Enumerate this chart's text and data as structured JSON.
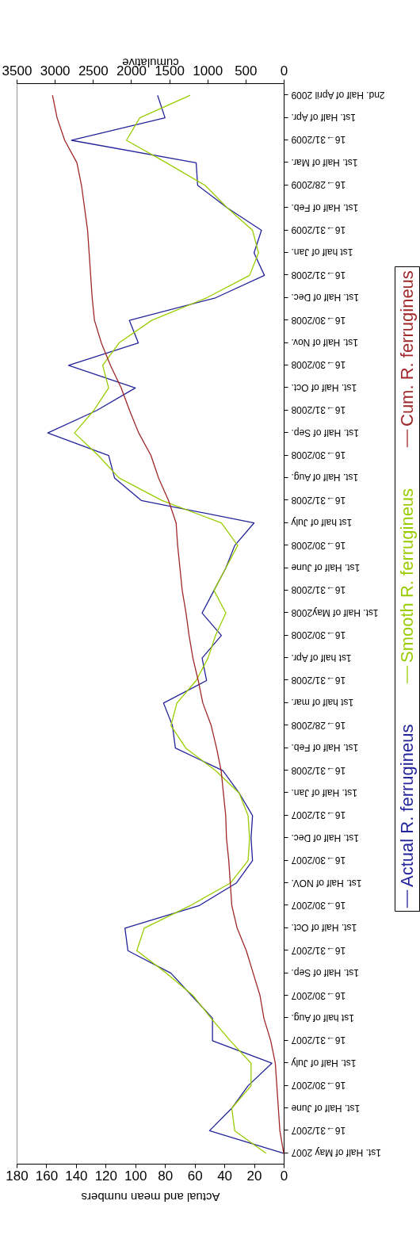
{
  "chart_data": {
    "type": "line",
    "orientation": "horizontal",
    "categories": [
      "2nd. Half of April 2009",
      "1st. Half of Apr.",
      "16→31/2009",
      "1st. Half of Mar.",
      "16→28/2009",
      "1st. Half of Feb.",
      "16→31/2009",
      "1st half of Jan.",
      "16→31/2008",
      "1st. Half of Dec.",
      "16→30/2008",
      "1st. Half of Nov.",
      "16→30/2008",
      "1st. Half of Oct.",
      "16→31/2008",
      "1st. Half of Sep.",
      "16→30/2008",
      "1st. Half of Aug.",
      "16→31/2008",
      "1st half of July",
      "16→30/2008",
      "1st. Half of June",
      "16→31/2008",
      "1st. Half of May2008",
      "16→30/2008",
      "1st half of Apr.",
      "16→31/2008",
      "1st half of mar.",
      "16→28/2008",
      "1st. Half of Feb.",
      "16→31/2008",
      "1st. Half of Jan.",
      "16→31/2007",
      "1st. Half of Dec.",
      "16→30/2007",
      "1st. Half of NOV.",
      "16→30/2007",
      "1st. Half of Oct.",
      "16→31/2007",
      "1st. Half of Sep.",
      "16→30/2007",
      "1st half of Aug.",
      "16→31/2007",
      "1st. Half of July",
      "16→30/2007",
      "1st. Half of June",
      "16→31/2007",
      "1st. Half of May 2007"
    ],
    "series": [
      {
        "name": "Actual R. ferrugineus",
        "color": "#23239b",
        "values": [
          85,
          80,
          143,
          59,
          58,
          38,
          15,
          20,
          13,
          46,
          104,
          98,
          145,
          100,
          126,
          159,
          118,
          114,
          96,
          20,
          33,
          39,
          47,
          55,
          42,
          55,
          52,
          81,
          75,
          73,
          41,
          30,
          21,
          22,
          21,
          32,
          57,
          107,
          105,
          76,
          62,
          48,
          48,
          8,
          24,
          35,
          50,
          0
        ]
      },
      {
        "name": "Smooth R. ferrugineus",
        "color": "#99cc00",
        "values": [
          63,
          97,
          106,
          79,
          53,
          38,
          21,
          17,
          23,
          52,
          89,
          111,
          122,
          118,
          128,
          141,
          125,
          111,
          82,
          42,
          31,
          39,
          47,
          39,
          46,
          51,
          59,
          72,
          76,
          66,
          46,
          30,
          24,
          23,
          24,
          36,
          63,
          94,
          99,
          79,
          61,
          49,
          36,
          22,
          22,
          35,
          33,
          12
        ]
      },
      {
        "name": "Cum. R. ferrugineus",
        "color": "#a0282a",
        "axis": "x2",
        "values": [
          3030,
          2970,
          2870,
          2710,
          2650,
          2610,
          2570,
          2550,
          2530,
          2510,
          2480,
          2390,
          2270,
          2130,
          2020,
          1900,
          1740,
          1640,
          1510,
          1410,
          1390,
          1360,
          1330,
          1280,
          1240,
          1190,
          1120,
          1060,
          950,
          880,
          820,
          790,
          760,
          750,
          720,
          700,
          680,
          610,
          490,
          400,
          310,
          260,
          170,
          110,
          90,
          70,
          50,
          0
        ]
      }
    ],
    "xlabel": "Actual and mean numbers",
    "x2label": "cumulative",
    "xlim": [
      180,
      0
    ],
    "xticks": [
      180,
      160,
      140,
      120,
      100,
      80,
      60,
      40,
      20,
      0
    ],
    "x2lim": [
      3500,
      0
    ],
    "x2ticks": [
      3500,
      3000,
      2500,
      2000,
      1500,
      1000,
      500,
      0
    ],
    "legend": "right",
    "marker": "none",
    "line_style": "solid",
    "grid": false
  }
}
